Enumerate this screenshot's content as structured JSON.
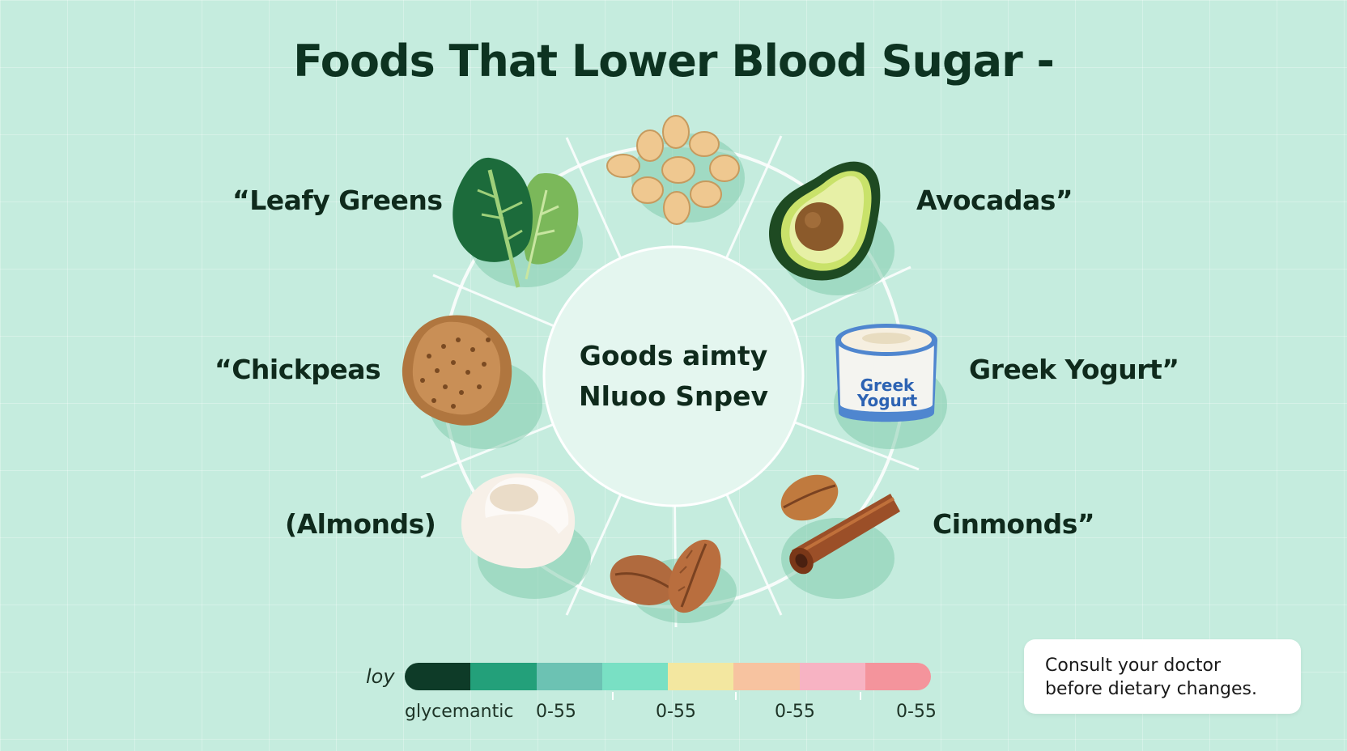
{
  "title": "Foods That Lower Blood Sugar -",
  "center": {
    "line1": "Goods aimty",
    "line2": "Nluoo Snpev"
  },
  "labels": {
    "leafy_greens": "“Leafy Greens",
    "avocados": "Avocadas”",
    "chickpeas": "“Chickpeas",
    "greek_yogurt": "Greek Yogurt”",
    "almonds": "(Almonds)",
    "cinnamon": "Cinmonds”"
  },
  "yogurt_cup": {
    "line1": "Greek",
    "line2": "Yogurt"
  },
  "legend": {
    "low_label": "loy",
    "index_label": "glycemantic",
    "range_labels": [
      "0-55",
      "0-55",
      "0-55",
      "0-55"
    ],
    "colors": [
      "#0e3b28",
      "#23a07a",
      "#6cc2b3",
      "#79e0c4",
      "#f3e7a0",
      "#f7c3a0",
      "#f7b3c3",
      "#f4949c"
    ]
  },
  "note": "Consult your doctor before dietary changes."
}
